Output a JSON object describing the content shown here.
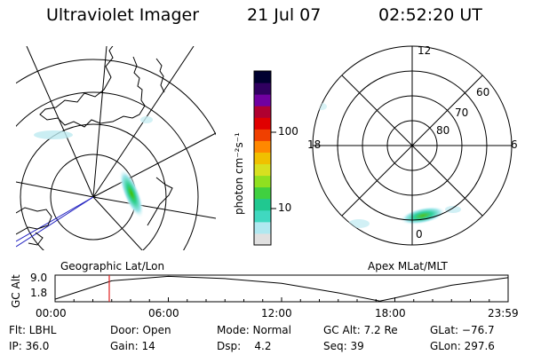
{
  "header": {
    "instrument": "Ultraviolet Imager",
    "date": "21 Jul 07",
    "time": "02:52:20 UT"
  },
  "colorbar": {
    "label": "photon cm⁻²s⁻¹",
    "ticks": [
      "100",
      "10"
    ],
    "colors": [
      "#e0e0e0",
      "#b0e8f0",
      "#40d8c0",
      "#20c890",
      "#40d040",
      "#90e020",
      "#d8e020",
      "#f0c000",
      "#ff8800",
      "#f04000",
      "#e00000",
      "#b00030",
      "#7000a0",
      "#300060",
      "#000030"
    ]
  },
  "geo_map": {
    "title": "Geographic Lat/Lon"
  },
  "polar_map": {
    "title": "Apex MLat/MLT",
    "mlt_labels": {
      "top": "12",
      "left": "18",
      "right": "6",
      "bottom": "0"
    },
    "lat_labels": [
      "60",
      "70",
      "80"
    ]
  },
  "chart_data": {
    "type": "line",
    "ylabel": "GC Alt",
    "yticks": [
      "9.0",
      "1.8"
    ],
    "xticks": [
      "00:00",
      "06:00",
      "12:00",
      "18:00",
      "23:59"
    ],
    "x_hours": [
      0,
      3,
      6,
      9,
      12,
      15,
      17.2,
      18,
      21,
      23.98
    ],
    "y_re": [
      1.8,
      7.6,
      9.0,
      8.3,
      6.8,
      3.8,
      1.2,
      2.2,
      6.2,
      8.6
    ],
    "marker_hour": 2.87
  },
  "status": {
    "flt": "Flt: LBHL",
    "door": "Door: Open",
    "mode": "Mode: Normal",
    "gc_alt": "GC Alt: 7.2 Re",
    "glat": "GLat: −76.7",
    "ip": "IP: 36.0",
    "gain": "Gain: 14",
    "dsp": "Dsp:    4.2",
    "seq": "Seq: 39",
    "glon": "GLon: 297.6"
  }
}
